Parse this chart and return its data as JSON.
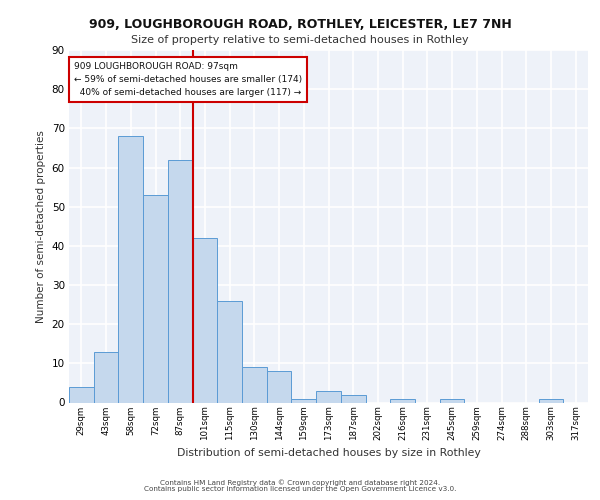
{
  "title_line1": "909, LOUGHBOROUGH ROAD, ROTHLEY, LEICESTER, LE7 7NH",
  "title_line2": "Size of property relative to semi-detached houses in Rothley",
  "xlabel": "Distribution of semi-detached houses by size in Rothley",
  "ylabel": "Number of semi-detached properties",
  "categories": [
    "29sqm",
    "43sqm",
    "58sqm",
    "72sqm",
    "87sqm",
    "101sqm",
    "115sqm",
    "130sqm",
    "144sqm",
    "159sqm",
    "173sqm",
    "187sqm",
    "202sqm",
    "216sqm",
    "231sqm",
    "245sqm",
    "259sqm",
    "274sqm",
    "288sqm",
    "303sqm",
    "317sqm"
  ],
  "values": [
    4,
    13,
    68,
    53,
    62,
    42,
    26,
    9,
    8,
    1,
    3,
    2,
    0,
    1,
    0,
    1,
    0,
    0,
    0,
    1,
    0
  ],
  "bar_color": "#c5d8ed",
  "bar_edge_color": "#5b9bd5",
  "property_label": "909 LOUGHBOROUGH ROAD: 97sqm",
  "pct_smaller": 59,
  "count_smaller": 174,
  "pct_larger": 40,
  "count_larger": 117,
  "vline_position": 4.5,
  "vline_color": "#cc0000",
  "annotation_box_color": "#cc0000",
  "ylim": [
    0,
    90
  ],
  "yticks": [
    0,
    10,
    20,
    30,
    40,
    50,
    60,
    70,
    80,
    90
  ],
  "background_color": "#eef2f9",
  "grid_color": "#ffffff",
  "footer_line1": "Contains HM Land Registry data © Crown copyright and database right 2024.",
  "footer_line2": "Contains public sector information licensed under the Open Government Licence v3.0."
}
